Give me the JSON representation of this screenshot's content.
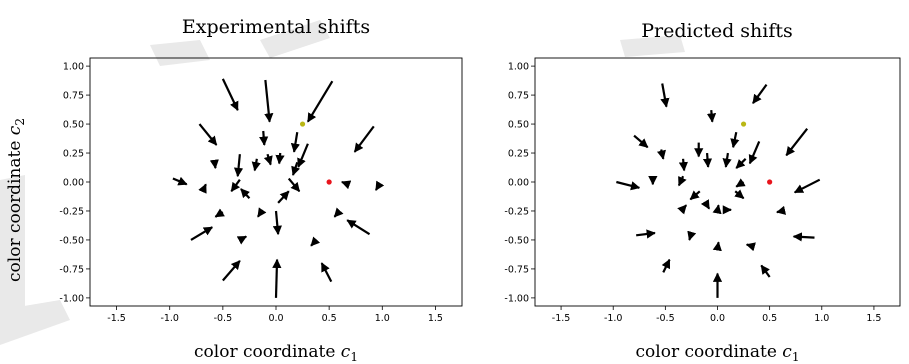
{
  "y_axis_label": {
    "main": "color coordinate ",
    "var": "c",
    "sub": "2"
  },
  "chart_data": [
    {
      "type": "quiver",
      "title": "Experimental shifts",
      "xlabel": {
        "main": "color coordinate ",
        "var": "c",
        "sub": "1"
      },
      "xlim": [
        -1.75,
        1.75
      ],
      "ylim": [
        -1.07,
        1.07
      ],
      "xticks": [
        "-1.5",
        "-1.0",
        "-0.5",
        "0.0",
        "0.5",
        "1.0",
        "1.5"
      ],
      "xtick_values": [
        -1.5,
        -1.0,
        -0.5,
        0.0,
        0.5,
        1.0,
        1.5
      ],
      "yticks": [
        "1.00",
        "0.75",
        "0.50",
        "0.25",
        "0.00",
        "-0.25",
        "-0.50",
        "-0.75",
        "-1.00"
      ],
      "ytick_values": [
        1.0,
        0.75,
        0.5,
        0.25,
        0.0,
        -0.25,
        -0.5,
        -0.75,
        -1.0
      ],
      "points": [
        {
          "name": "red point",
          "x": 0.5,
          "y": 0.0,
          "color": "#e8141c"
        },
        {
          "name": "yellow point",
          "x": 0.25,
          "y": 0.5,
          "color": "#b9b715"
        }
      ],
      "arrows": [
        {
          "x0": -0.1,
          "y0": 0.88,
          "x1": -0.06,
          "y1": 0.52
        },
        {
          "x0": 0.53,
          "y0": 0.87,
          "x1": 0.3,
          "y1": 0.52
        },
        {
          "x0": -0.5,
          "y0": 0.89,
          "x1": -0.36,
          "y1": 0.62
        },
        {
          "x0": -0.72,
          "y0": 0.5,
          "x1": -0.56,
          "y1": 0.32
        },
        {
          "x0": 0.92,
          "y0": 0.48,
          "x1": 0.74,
          "y1": 0.26
        },
        {
          "x0": -0.12,
          "y0": 0.44,
          "x1": -0.11,
          "y1": 0.32
        },
        {
          "x0": 0.2,
          "y0": 0.43,
          "x1": 0.17,
          "y1": 0.26
        },
        {
          "x0": -0.58,
          "y0": 0.19,
          "x1": -0.57,
          "y1": 0.12
        },
        {
          "x0": -0.08,
          "y0": 0.24,
          "x1": -0.05,
          "y1": 0.15
        },
        {
          "x0": 0.04,
          "y0": 0.25,
          "x1": 0.03,
          "y1": 0.16
        },
        {
          "x0": 0.3,
          "y0": 0.33,
          "x1": 0.21,
          "y1": 0.13
        },
        {
          "x0": -0.34,
          "y0": 0.24,
          "x1": -0.36,
          "y1": 0.05
        },
        {
          "x0": -0.18,
          "y0": 0.2,
          "x1": -0.2,
          "y1": 0.1
        },
        {
          "x0": 0.2,
          "y0": 0.17,
          "x1": 0.16,
          "y1": 0.06
        },
        {
          "x0": -0.97,
          "y0": 0.03,
          "x1": -0.84,
          "y1": -0.02
        },
        {
          "x0": -0.68,
          "y0": -0.06,
          "x1": -0.66,
          "y1": -0.02
        },
        {
          "x0": 0.68,
          "y0": -0.02,
          "x1": 0.62,
          "y1": 0.0
        },
        {
          "x0": 0.98,
          "y0": -0.01,
          "x1": 0.94,
          "y1": -0.07
        },
        {
          "x0": -0.34,
          "y0": 0.02,
          "x1": -0.42,
          "y1": -0.08
        },
        {
          "x0": 0.12,
          "y0": 0.03,
          "x1": 0.22,
          "y1": -0.08
        },
        {
          "x0": -0.25,
          "y0": -0.14,
          "x1": -0.33,
          "y1": -0.06
        },
        {
          "x0": 0.02,
          "y0": -0.18,
          "x1": 0.12,
          "y1": -0.08
        },
        {
          "x0": -0.5,
          "y0": -0.26,
          "x1": -0.57,
          "y1": -0.3
        },
        {
          "x0": -0.14,
          "y0": -0.26,
          "x1": -0.17,
          "y1": -0.3
        },
        {
          "x0": 0.0,
          "y0": -0.25,
          "x1": 0.02,
          "y1": -0.45
        },
        {
          "x0": 0.58,
          "y0": -0.27,
          "x1": 0.55,
          "y1": -0.3
        },
        {
          "x0": -0.8,
          "y0": -0.5,
          "x1": -0.6,
          "y1": -0.39
        },
        {
          "x0": 0.88,
          "y0": -0.45,
          "x1": 0.67,
          "y1": -0.33
        },
        {
          "x0": -0.32,
          "y0": -0.49,
          "x1": -0.28,
          "y1": -0.47
        },
        {
          "x0": 0.34,
          "y0": -0.54,
          "x1": 0.33,
          "y1": -0.55
        },
        {
          "x0": -0.5,
          "y0": -0.85,
          "x1": -0.34,
          "y1": -0.68
        },
        {
          "x0": 0.0,
          "y0": -1.0,
          "x1": 0.01,
          "y1": -0.67
        },
        {
          "x0": 0.52,
          "y0": -0.86,
          "x1": 0.43,
          "y1": -0.7
        }
      ]
    },
    {
      "type": "quiver",
      "title": "Predicted shifts",
      "xlabel": {
        "main": "color coordinate ",
        "var": "c",
        "sub": "1"
      },
      "xlim": [
        -1.75,
        1.75
      ],
      "ylim": [
        -1.07,
        1.07
      ],
      "xticks": [
        "-1.5",
        "-1.0",
        "-0.5",
        "0.0",
        "0.5",
        "1.0",
        "1.5"
      ],
      "xtick_values": [
        -1.5,
        -1.0,
        -0.5,
        0.0,
        0.5,
        1.0,
        1.5
      ],
      "yticks": [
        "1.00",
        "0.75",
        "0.50",
        "0.25",
        "0.00",
        "-0.25",
        "-0.50",
        "-0.75",
        "-1.00"
      ],
      "ytick_values": [
        1.0,
        0.75,
        0.5,
        0.25,
        0.0,
        -0.25,
        -0.5,
        -0.75,
        -1.0
      ],
      "points": [
        {
          "name": "red point",
          "x": 0.5,
          "y": 0.0,
          "color": "#e8141c"
        },
        {
          "name": "yellow point",
          "x": 0.25,
          "y": 0.5,
          "color": "#b9b715"
        }
      ],
      "arrows": [
        {
          "x0": -0.53,
          "y0": 0.85,
          "x1": -0.49,
          "y1": 0.65
        },
        {
          "x0": 0.47,
          "y0": 0.84,
          "x1": 0.34,
          "y1": 0.68
        },
        {
          "x0": -0.06,
          "y0": 0.62,
          "x1": -0.05,
          "y1": 0.52
        },
        {
          "x0": -0.8,
          "y0": 0.4,
          "x1": -0.67,
          "y1": 0.3
        },
        {
          "x0": 0.86,
          "y0": 0.46,
          "x1": 0.66,
          "y1": 0.23
        },
        {
          "x0": -0.54,
          "y0": 0.28,
          "x1": -0.52,
          "y1": 0.2
        },
        {
          "x0": 0.18,
          "y0": 0.43,
          "x1": 0.15,
          "y1": 0.3
        },
        {
          "x0": -0.18,
          "y0": 0.34,
          "x1": -0.18,
          "y1": 0.22
        },
        {
          "x0": -0.1,
          "y0": 0.25,
          "x1": -0.09,
          "y1": 0.13
        },
        {
          "x0": 0.1,
          "y0": 0.25,
          "x1": 0.08,
          "y1": 0.13
        },
        {
          "x0": 0.4,
          "y0": 0.35,
          "x1": 0.31,
          "y1": 0.16
        },
        {
          "x0": -0.33,
          "y0": 0.2,
          "x1": -0.32,
          "y1": 0.1
        },
        {
          "x0": 0.27,
          "y0": 0.2,
          "x1": 0.18,
          "y1": 0.12
        },
        {
          "x0": -0.97,
          "y0": 0.0,
          "x1": -0.75,
          "y1": -0.05
        },
        {
          "x0": -0.62,
          "y0": 0.0,
          "x1": -0.62,
          "y1": -0.02
        },
        {
          "x0": -0.33,
          "y0": 0.05,
          "x1": -0.37,
          "y1": -0.03
        },
        {
          "x0": 0.98,
          "y0": 0.02,
          "x1": 0.74,
          "y1": -0.09
        },
        {
          "x0": 0.25,
          "y0": 0.0,
          "x1": 0.18,
          "y1": -0.04
        },
        {
          "x0": -0.17,
          "y0": -0.08,
          "x1": -0.26,
          "y1": -0.15
        },
        {
          "x0": 0.17,
          "y0": -0.08,
          "x1": 0.25,
          "y1": -0.14
        },
        {
          "x0": -0.1,
          "y0": -0.2,
          "x1": -0.08,
          "y1": -0.23
        },
        {
          "x0": 0.0,
          "y0": -0.25,
          "x1": 0.01,
          "y1": -0.2
        },
        {
          "x0": 0.1,
          "y0": -0.24,
          "x1": 0.13,
          "y1": -0.24
        },
        {
          "x0": -0.32,
          "y0": -0.22,
          "x1": -0.3,
          "y1": -0.2
        },
        {
          "x0": 0.62,
          "y0": -0.25,
          "x1": 0.57,
          "y1": -0.26
        },
        {
          "x0": -0.78,
          "y0": -0.46,
          "x1": -0.6,
          "y1": -0.44
        },
        {
          "x0": 0.93,
          "y0": -0.48,
          "x1": 0.73,
          "y1": -0.47
        },
        {
          "x0": -0.26,
          "y0": -0.47,
          "x1": -0.27,
          "y1": -0.5
        },
        {
          "x0": 0.32,
          "y0": -0.55,
          "x1": 0.28,
          "y1": -0.54
        },
        {
          "x0": 0.0,
          "y0": -0.58,
          "x1": 0.01,
          "y1": -0.52
        },
        {
          "x0": -0.52,
          "y0": -0.78,
          "x1": -0.46,
          "y1": -0.67
        },
        {
          "x0": 0.0,
          "y0": -1.0,
          "x1": 0.0,
          "y1": -0.79
        },
        {
          "x0": 0.5,
          "y0": -0.82,
          "x1": 0.42,
          "y1": -0.72
        }
      ]
    }
  ]
}
